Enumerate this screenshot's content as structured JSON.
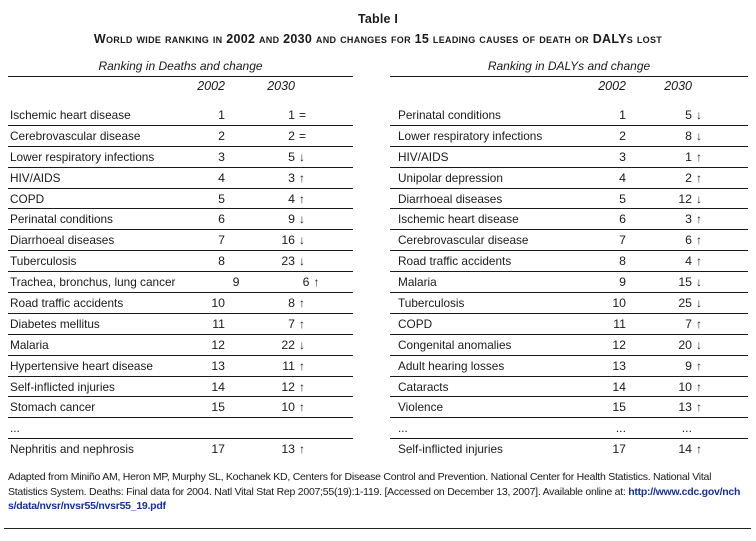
{
  "table_title": "Table I",
  "table_subtitle": "World wide ranking in 2002 and 2030 and changes for 15 leading causes of death or DALYs lost",
  "columns": {
    "year1": "2002",
    "year2": "2030"
  },
  "left": {
    "group_header": "Ranking in Deaths and change",
    "rows": [
      {
        "cause": "Ischemic heart disease",
        "rank_2002": "1",
        "rank_2030": "1",
        "change": "="
      },
      {
        "cause": "Cerebrovascular disease",
        "rank_2002": "2",
        "rank_2030": "2",
        "change": "="
      },
      {
        "cause": "Lower respiratory infections",
        "rank_2002": "3",
        "rank_2030": "5",
        "change": "↓"
      },
      {
        "cause": "HIV/AIDS",
        "rank_2002": "4",
        "rank_2030": "3",
        "change": "↑"
      },
      {
        "cause": "COPD",
        "rank_2002": "5",
        "rank_2030": "4",
        "change": "↑"
      },
      {
        "cause": "Perinatal conditions",
        "rank_2002": "6",
        "rank_2030": "9",
        "change": "↓"
      },
      {
        "cause": "Diarrhoeal diseases",
        "rank_2002": "7",
        "rank_2030": "16",
        "change": "↓"
      },
      {
        "cause": "Tuberculosis",
        "rank_2002": "8",
        "rank_2030": "23",
        "change": "↓"
      },
      {
        "cause": "Trachea, bronchus, lung cancer",
        "rank_2002": "9",
        "rank_2030": "6",
        "change": "↑"
      },
      {
        "cause": "Road traffic accidents",
        "rank_2002": "10",
        "rank_2030": "8",
        "change": "↑"
      },
      {
        "cause": "Diabetes mellitus",
        "rank_2002": "11",
        "rank_2030": "7",
        "change": "↑"
      },
      {
        "cause": "Malaria",
        "rank_2002": "12",
        "rank_2030": "22",
        "change": "↓"
      },
      {
        "cause": "Hypertensive heart disease",
        "rank_2002": "13",
        "rank_2030": "11",
        "change": "↑"
      },
      {
        "cause": "Self-inflicted injuries",
        "rank_2002": "14",
        "rank_2030": "12",
        "change": "↑"
      },
      {
        "cause": "Stomach cancer",
        "rank_2002": "15",
        "rank_2030": "10",
        "change": "↑"
      },
      {
        "cause": "...",
        "rank_2002": "",
        "rank_2030": "",
        "change": ""
      },
      {
        "cause": "Nephritis and nephrosis",
        "rank_2002": "17",
        "rank_2030": "13",
        "change": "↑"
      }
    ]
  },
  "right": {
    "group_header": "Ranking in DALYs and change",
    "rows": [
      {
        "cause": "Perinatal conditions",
        "rank_2002": "1",
        "rank_2030": "5",
        "change": "↓"
      },
      {
        "cause": "Lower respiratory infections",
        "rank_2002": "2",
        "rank_2030": "8",
        "change": "↓"
      },
      {
        "cause": "HIV/AIDS",
        "rank_2002": "3",
        "rank_2030": "1",
        "change": "↑"
      },
      {
        "cause": "Unipolar depression",
        "rank_2002": "4",
        "rank_2030": "2",
        "change": "↑"
      },
      {
        "cause": "Diarrhoeal diseases",
        "rank_2002": "5",
        "rank_2030": "12",
        "change": "↓"
      },
      {
        "cause": "Ischemic heart disease",
        "rank_2002": "6",
        "rank_2030": "3",
        "change": "↑"
      },
      {
        "cause": "Cerebrovascular disease",
        "rank_2002": "7",
        "rank_2030": "6",
        "change": "↑"
      },
      {
        "cause": "Road traffic accidents",
        "rank_2002": "8",
        "rank_2030": "4",
        "change": "↑"
      },
      {
        "cause": "Malaria",
        "rank_2002": "9",
        "rank_2030": "15",
        "change": "↓"
      },
      {
        "cause": "Tuberculosis",
        "rank_2002": "10",
        "rank_2030": "25",
        "change": "↓"
      },
      {
        "cause": "COPD",
        "rank_2002": "11",
        "rank_2030": "7",
        "change": "↑"
      },
      {
        "cause": "Congenital anomalies",
        "rank_2002": "12",
        "rank_2030": "20",
        "change": "↓"
      },
      {
        "cause": "Adult hearing losses",
        "rank_2002": "13",
        "rank_2030": "9",
        "change": "↑"
      },
      {
        "cause": "Cataracts",
        "rank_2002": "14",
        "rank_2030": "10",
        "change": "↑"
      },
      {
        "cause": "Violence",
        "rank_2002": "15",
        "rank_2030": "13",
        "change": "↑"
      },
      {
        "cause": "...",
        "rank_2002": "...",
        "rank_2030": "...",
        "change": ""
      },
      {
        "cause": "Self-inflicted injuries",
        "rank_2002": "17",
        "rank_2030": "14",
        "change": "↑"
      }
    ]
  },
  "footnote": {
    "text": "Adapted from Miniño AM, Heron MP, Murphy SL, Kochanek KD, Centers for Disease Control and Prevention. National Center for Health Statistics. National Vital Statistics System. Deaths: Final data for 2004. Natl Vital Stat Rep 2007;55(19):1-119. [Accessed on December 13, 2007]. Available online at: ",
    "link": "http://www.cdc.gov/nchs/data/nvsr/nvsr55/nvsr55_19.pdf",
    "link_color": "#17318c"
  }
}
